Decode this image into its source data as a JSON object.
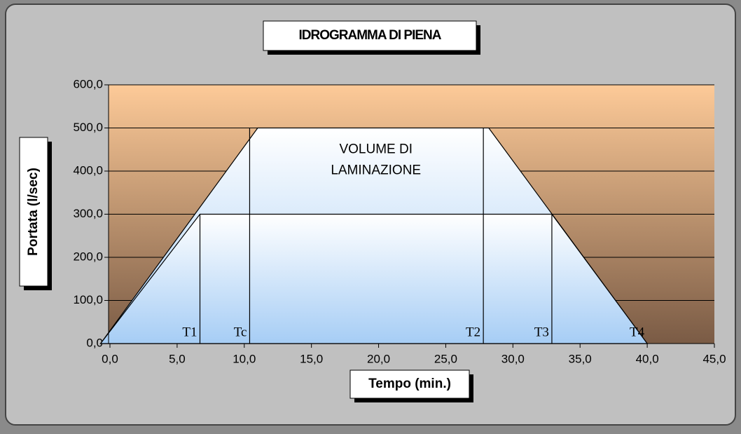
{
  "chart_data": {
    "type": "area",
    "title": "IDROGRAMMA DI PIENA",
    "x_label": "Tempo (min.)",
    "y_label": "Portata (l/sec)",
    "annotation": {
      "text": "VOLUME DI LAMINAZIONE",
      "x": 19.8,
      "y": 425
    },
    "series": [
      {
        "x": [
          -0.7,
          11,
          28.2,
          40
        ],
        "values": [
          0,
          500,
          500,
          0
        ],
        "color": "#a6cdf5"
      },
      {
        "x": [
          -0.7,
          6.7,
          32.9,
          40
        ],
        "values": [
          0,
          300,
          300,
          0
        ],
        "color": "#a6cdf5"
      }
    ],
    "markers": [
      {
        "label": "T1",
        "x": 6.7,
        "top": 300
      },
      {
        "label": "Tc",
        "x": 10.4,
        "top": 500
      },
      {
        "label": "T2",
        "x": 27.8,
        "top": 500
      },
      {
        "label": "T3",
        "x": 32.9,
        "top": 300
      },
      {
        "label": "T4",
        "x": 40,
        "top": 0
      }
    ],
    "xlim": [
      0,
      45
    ],
    "ylim": [
      0,
      600
    ],
    "xticks": [
      {
        "value": 0,
        "label": "0,0"
      },
      {
        "value": 5,
        "label": "5,0"
      },
      {
        "value": 10,
        "label": "10,0"
      },
      {
        "value": 15,
        "label": "15,0"
      },
      {
        "value": 20,
        "label": "20,0"
      },
      {
        "value": 25,
        "label": "25,0"
      },
      {
        "value": 30,
        "label": "30,0"
      },
      {
        "value": 35,
        "label": "35,0"
      },
      {
        "value": 40,
        "label": "40,0"
      },
      {
        "value": 45,
        "label": "45,0"
      }
    ],
    "yticks": [
      {
        "value": 0,
        "label": "0,0"
      },
      {
        "value": 100,
        "label": "100,0"
      },
      {
        "value": 200,
        "label": "200,0"
      },
      {
        "value": 300,
        "label": "300,0"
      },
      {
        "value": 400,
        "label": "400,0"
      },
      {
        "value": 500,
        "label": "500,0"
      },
      {
        "value": 600,
        "label": "600,0"
      }
    ],
    "grid": true
  }
}
